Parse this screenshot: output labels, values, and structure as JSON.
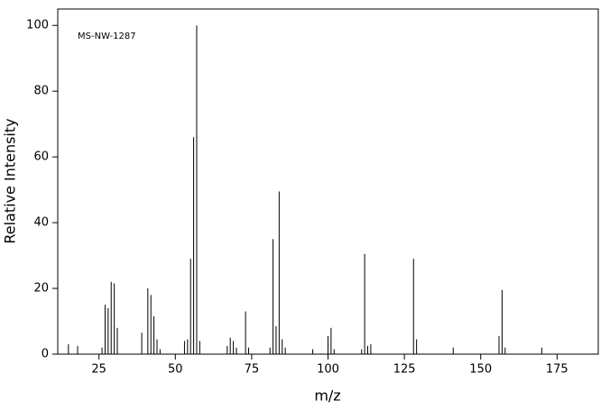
{
  "chart_data": {
    "type": "stem",
    "annotation": "MS-NW-1287",
    "xlabel": "m/z",
    "ylabel": "Relative Intensity",
    "x": [
      15,
      18,
      26,
      27,
      28,
      29,
      30,
      31,
      39,
      41,
      42,
      43,
      44,
      45,
      53,
      54,
      55,
      56,
      57,
      58,
      67,
      68,
      69,
      70,
      73,
      74,
      81,
      82,
      83,
      84,
      85,
      86,
      95,
      100,
      101,
      102,
      111,
      112,
      113,
      114,
      128,
      129,
      141,
      156,
      157,
      158,
      170
    ],
    "values": [
      3,
      2.5,
      2,
      15,
      14,
      22,
      21.5,
      8,
      6.5,
      20,
      18,
      11.5,
      4.5,
      1.5,
      4,
      4.5,
      29,
      66,
      100,
      4,
      2.5,
      5,
      4,
      2,
      13,
      2,
      2,
      35,
      8.5,
      49.5,
      4.5,
      2,
      1.5,
      5.5,
      8,
      1.5,
      1.5,
      30.5,
      2.5,
      3,
      29,
      4.5,
      2,
      5.5,
      19.5,
      2,
      2
    ],
    "color": "#000000",
    "xlim": [
      11.5,
      188.5
    ],
    "xticks": [
      25,
      50,
      75,
      100,
      125,
      150,
      175
    ],
    "ylim": [
      0,
      105
    ],
    "yticks": [
      0,
      20,
      40,
      60,
      80,
      100
    ]
  }
}
